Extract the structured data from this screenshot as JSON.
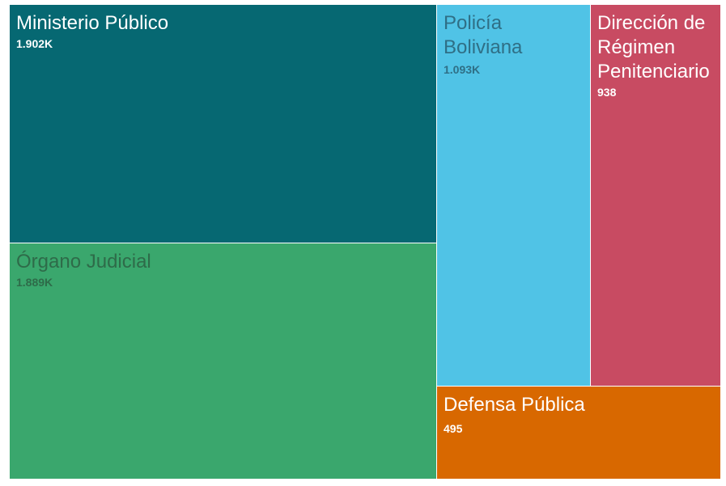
{
  "chart_data": {
    "type": "treemap",
    "items": [
      {
        "name": "Ministerio Público",
        "value": 1902,
        "label": "1.902K",
        "color": "#066872",
        "text_color": "#ffffff",
        "lines": [
          "Ministerio Público"
        ]
      },
      {
        "name": "Órgano Judicial",
        "value": 1889,
        "label": "1.889K",
        "color": "#3aa76d",
        "text_color": "#2e6b49",
        "lines": [
          "Órgano Judicial"
        ]
      },
      {
        "name": "Policía Boliviana",
        "value": 1093,
        "label": "1.093K",
        "color": "#50c3e6",
        "text_color": "#2f6f86",
        "lines": [
          "Policía",
          "Boliviana"
        ]
      },
      {
        "name": "Dirección de Régimen Penitenciario",
        "value": 938,
        "label": "938",
        "color": "#c84b62",
        "text_color": "#ffffff",
        "lines": [
          "Dirección de",
          "Régimen",
          "Penitenciario"
        ]
      },
      {
        "name": "Defensa Pública",
        "value": 495,
        "label": "495",
        "color": "#d86800",
        "text_color": "#ffffff",
        "lines": [
          "Defensa Pública"
        ]
      }
    ]
  }
}
